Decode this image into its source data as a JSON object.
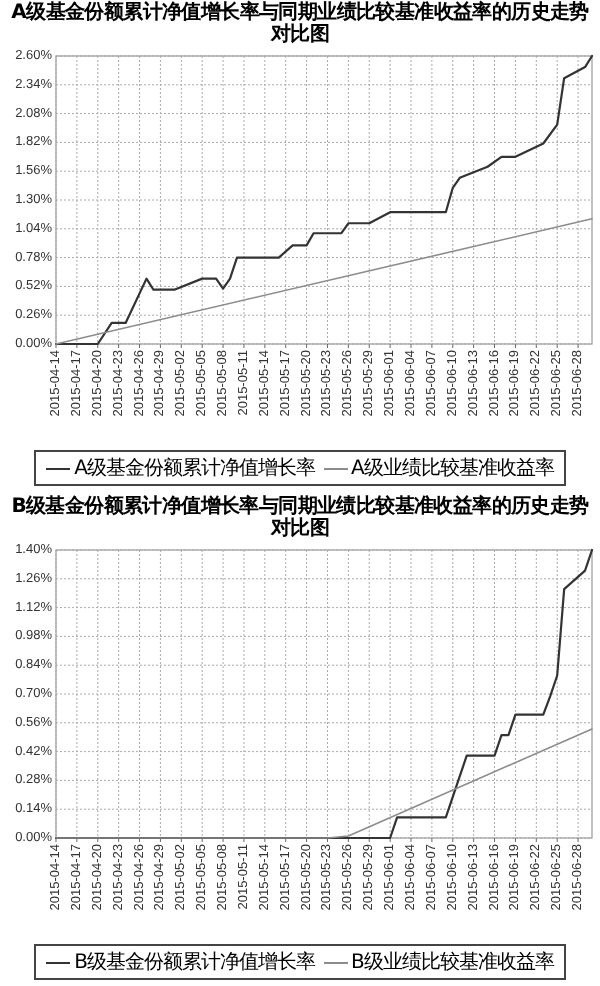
{
  "chart_data": [
    {
      "type": "line",
      "title": "A级基金份额累计净值增长率与同期业绩比较基准收益率的历史走势对比图",
      "grid": true,
      "legend": "bottom",
      "xlim": [
        "2015-04-14",
        "2015-06-30"
      ],
      "ylim": [
        0,
        2.6
      ],
      "xticks": [
        "2015-04-14",
        "2015-04-17",
        "2015-04-20",
        "2015-04-23",
        "2015-04-26",
        "2015-04-29",
        "2015-05-02",
        "2015-05-05",
        "2015-05-08",
        "2015-05-11",
        "2015-05-14",
        "2015-05-17",
        "2015-05-20",
        "2015-05-23",
        "2015-05-26",
        "2015-05-29",
        "2015-06-01",
        "2015-06-04",
        "2015-06-07",
        "2015-06-10",
        "2015-06-13",
        "2015-06-16",
        "2015-06-19",
        "2015-06-22",
        "2015-06-25",
        "2015-06-28"
      ],
      "yticks": [
        {
          "value": 0,
          "label": "0.00%"
        },
        {
          "value": 0.26,
          "label": "0.26%"
        },
        {
          "value": 0.52,
          "label": "0.52%"
        },
        {
          "value": 0.78,
          "label": "0.78%"
        },
        {
          "value": 1.04,
          "label": "1.04%"
        },
        {
          "value": 1.3,
          "label": "1.30%"
        },
        {
          "value": 1.56,
          "label": "1.56%"
        },
        {
          "value": 1.82,
          "label": "1.82%"
        },
        {
          "value": 2.08,
          "label": "2.08%"
        },
        {
          "value": 2.34,
          "label": "2.34%"
        },
        {
          "value": 2.6,
          "label": "2.60%"
        }
      ],
      "series": [
        {
          "name": "A级基金份额累计净值增长率",
          "color": "#333333",
          "x": [
            "2015-04-14",
            "2015-04-20",
            "2015-04-22",
            "2015-04-24",
            "2015-04-27",
            "2015-04-28",
            "2015-05-01",
            "2015-05-05",
            "2015-05-07",
            "2015-05-08",
            "2015-05-09",
            "2015-05-10",
            "2015-05-16",
            "2015-05-18",
            "2015-05-20",
            "2015-05-21",
            "2015-05-25",
            "2015-05-26",
            "2015-05-29",
            "2015-06-01",
            "2015-06-09",
            "2015-06-10",
            "2015-06-11",
            "2015-06-15",
            "2015-06-17",
            "2015-06-19",
            "2015-06-23",
            "2015-06-25",
            "2015-06-26",
            "2015-06-29",
            "2015-06-30"
          ],
          "values": [
            0,
            0,
            0.19,
            0.19,
            0.59,
            0.49,
            0.49,
            0.59,
            0.59,
            0.5,
            0.59,
            0.78,
            0.78,
            0.89,
            0.89,
            1.0,
            1.0,
            1.09,
            1.09,
            1.19,
            1.19,
            1.41,
            1.5,
            1.6,
            1.69,
            1.69,
            1.81,
            1.98,
            2.4,
            2.5,
            2.6
          ]
        },
        {
          "name": "A级业绩比较基准收益率",
          "color": "#8c8c8c",
          "x": [
            "2015-04-14",
            "2015-06-30"
          ],
          "values": [
            0,
            1.13
          ]
        }
      ]
    },
    {
      "type": "line",
      "title": "B级基金份额累计净值增长率与同期业绩比较基准收益率的历史走势对比图",
      "grid": true,
      "legend": "bottom",
      "xlim": [
        "2015-04-14",
        "2015-06-30"
      ],
      "ylim": [
        0,
        1.4
      ],
      "xticks": [
        "2015-04-14",
        "2015-04-17",
        "2015-04-20",
        "2015-04-23",
        "2015-04-26",
        "2015-04-29",
        "2015-05-02",
        "2015-05-05",
        "2015-05-08",
        "2015-05-11",
        "2015-05-14",
        "2015-05-17",
        "2015-05-20",
        "2015-05-23",
        "2015-05-26",
        "2015-05-29",
        "2015-06-01",
        "2015-06-04",
        "2015-06-07",
        "2015-06-10",
        "2015-06-13",
        "2015-06-16",
        "2015-06-19",
        "2015-06-22",
        "2015-06-25",
        "2015-06-28"
      ],
      "yticks": [
        {
          "value": 0,
          "label": "0.00%"
        },
        {
          "value": 0.14,
          "label": "0.14%"
        },
        {
          "value": 0.28,
          "label": "0.28%"
        },
        {
          "value": 0.42,
          "label": "0.42%"
        },
        {
          "value": 0.56,
          "label": "0.56%"
        },
        {
          "value": 0.7,
          "label": "0.70%"
        },
        {
          "value": 0.84,
          "label": "0.84%"
        },
        {
          "value": 0.98,
          "label": "0.98%"
        },
        {
          "value": 1.12,
          "label": "1.12%"
        },
        {
          "value": 1.26,
          "label": "1.26%"
        },
        {
          "value": 1.4,
          "label": "1.40%"
        }
      ],
      "series": [
        {
          "name": "B级基金份额累计净值增长率",
          "color": "#333333",
          "x": [
            "2015-04-14",
            "2015-06-01",
            "2015-06-02",
            "2015-06-09",
            "2015-06-12",
            "2015-06-16",
            "2015-06-17",
            "2015-06-18",
            "2015-06-19",
            "2015-06-23",
            "2015-06-24",
            "2015-06-25",
            "2015-06-26",
            "2015-06-29",
            "2015-06-30"
          ],
          "values": [
            0,
            0,
            0.1,
            0.1,
            0.4,
            0.4,
            0.5,
            0.5,
            0.6,
            0.6,
            0.69,
            0.79,
            1.21,
            1.3,
            1.4
          ]
        },
        {
          "name": "B级业绩比较基准收益率",
          "color": "#8c8c8c",
          "x": [
            "2015-04-14",
            "2015-05-23",
            "2015-05-26",
            "2015-06-30"
          ],
          "values": [
            0,
            0,
            0.01,
            0.53
          ]
        }
      ]
    }
  ]
}
